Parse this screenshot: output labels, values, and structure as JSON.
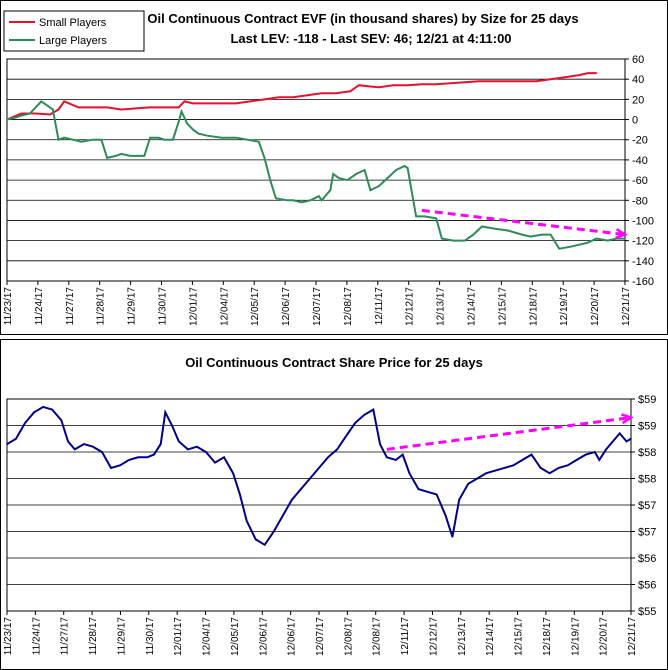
{
  "chart_data": [
    {
      "type": "line",
      "title": "Oil Continuous Contract EVF (in thousand shares) by Size for 25 days",
      "subtitle": "Last LEV: -118 - Last SEV: 46; 12/21 at 4:11:00",
      "legend_position": "top-left",
      "grid": true,
      "y_axis_side": "right",
      "ylim": [
        -160,
        60
      ],
      "y_ticks": [
        60,
        40,
        20,
        0,
        -20,
        -40,
        -60,
        -80,
        -100,
        -120,
        -140,
        -160
      ],
      "categories": [
        "11/23/17",
        "11/24/17",
        "11/27/17",
        "11/28/17",
        "11/29/17",
        "11/30/17",
        "12/01/17",
        "12/04/17",
        "12/05/17",
        "12/06/17",
        "12/07/17",
        "12/08/17",
        "12/11/17",
        "12/12/17",
        "12/13/17",
        "12/14/17",
        "12/15/17",
        "12/18/17",
        "12/19/17",
        "12/20/17",
        "12/21/17"
      ],
      "series": [
        {
          "name": "Small Players",
          "color": "#e8112d",
          "points": [
            [
              0,
              0
            ],
            [
              0.5,
              6
            ],
            [
              1,
              6
            ],
            [
              1.5,
              5
            ],
            [
              1.8,
              10
            ],
            [
              2,
              18
            ],
            [
              2.5,
              12
            ],
            [
              3,
              12
            ],
            [
              3.5,
              12
            ],
            [
              4,
              10
            ],
            [
              4.5,
              11
            ],
            [
              5,
              12
            ],
            [
              5.5,
              12
            ],
            [
              6,
              12
            ],
            [
              6.2,
              18
            ],
            [
              6.5,
              16
            ],
            [
              7,
              16
            ],
            [
              7.5,
              16
            ],
            [
              8,
              16
            ],
            [
              8.5,
              18
            ],
            [
              9,
              20
            ],
            [
              9.5,
              22
            ],
            [
              10,
              22
            ],
            [
              10.5,
              24
            ],
            [
              11,
              26
            ],
            [
              11.5,
              26
            ],
            [
              12,
              28
            ],
            [
              12.3,
              34
            ],
            [
              12.6,
              33
            ],
            [
              13,
              32
            ],
            [
              13.5,
              34
            ],
            [
              14,
              34
            ],
            [
              14.5,
              35
            ],
            [
              15,
              35
            ],
            [
              15.5,
              36
            ],
            [
              16,
              37
            ],
            [
              16.5,
              38
            ],
            [
              17,
              38
            ],
            [
              17.5,
              38
            ],
            [
              18,
              38
            ],
            [
              18.5,
              38
            ],
            [
              19,
              40
            ],
            [
              19.5,
              42
            ],
            [
              20,
              44
            ],
            [
              20.3,
              46
            ],
            [
              20.6,
              46
            ]
          ]
        },
        {
          "name": "Large Players",
          "color": "#2e8b57",
          "points": [
            [
              0,
              0
            ],
            [
              0.3,
              2
            ],
            [
              0.5,
              4
            ],
            [
              0.8,
              6
            ],
            [
              1,
              12
            ],
            [
              1.2,
              18
            ],
            [
              1.4,
              14
            ],
            [
              1.6,
              10
            ],
            [
              1.8,
              -20
            ],
            [
              2,
              -18
            ],
            [
              2.3,
              -20
            ],
            [
              2.6,
              -22
            ],
            [
              3,
              -20
            ],
            [
              3.3,
              -20
            ],
            [
              3.5,
              -38
            ],
            [
              3.8,
              -36
            ],
            [
              4,
              -34
            ],
            [
              4.3,
              -36
            ],
            [
              4.5,
              -36
            ],
            [
              4.8,
              -36
            ],
            [
              5,
              -18
            ],
            [
              5.3,
              -18
            ],
            [
              5.5,
              -20
            ],
            [
              5.8,
              -20
            ],
            [
              6,
              -2
            ],
            [
              6.1,
              8
            ],
            [
              6.3,
              -4
            ],
            [
              6.5,
              -10
            ],
            [
              6.7,
              -14
            ],
            [
              7,
              -16
            ],
            [
              7.5,
              -18
            ],
            [
              8,
              -18
            ],
            [
              8.4,
              -20
            ],
            [
              8.8,
              -22
            ],
            [
              9,
              -38
            ],
            [
              9.2,
              -60
            ],
            [
              9.4,
              -78
            ],
            [
              9.8,
              -80
            ],
            [
              10,
              -80
            ],
            [
              10.3,
              -82
            ],
            [
              10.6,
              -80
            ],
            [
              10.9,
              -76
            ],
            [
              11,
              -80
            ],
            [
              11.3,
              -70
            ],
            [
              11.4,
              -54
            ],
            [
              11.6,
              -58
            ],
            [
              11.9,
              -60
            ],
            [
              12.2,
              -54
            ],
            [
              12.5,
              -50
            ],
            [
              12.7,
              -70
            ],
            [
              13,
              -66
            ],
            [
              13.3,
              -58
            ],
            [
              13.6,
              -50
            ],
            [
              13.9,
              -46
            ],
            [
              14,
              -48
            ],
            [
              14.3,
              -96
            ],
            [
              14.6,
              -96
            ],
            [
              15,
              -98
            ],
            [
              15.2,
              -118
            ],
            [
              15.6,
              -120
            ],
            [
              16,
              -120
            ],
            [
              16.3,
              -114
            ],
            [
              16.6,
              -106
            ],
            [
              17,
              -108
            ],
            [
              17.5,
              -110
            ],
            [
              18,
              -114
            ],
            [
              18.3,
              -116
            ],
            [
              18.7,
              -114
            ],
            [
              19,
              -114
            ],
            [
              19.3,
              -128
            ],
            [
              19.7,
              -126
            ],
            [
              20,
              -124
            ],
            [
              20.3,
              -122
            ],
            [
              20.6,
              -118
            ],
            [
              21,
              -120
            ],
            [
              21.3,
              -118
            ],
            [
              21.6,
              -118
            ]
          ]
        }
      ],
      "trend_line": {
        "color": "#ff00ff",
        "from": [
          14.5,
          -90
        ],
        "to": [
          21.6,
          -114
        ]
      }
    },
    {
      "type": "line",
      "title": "Oil Continuous Contract Share Price for 25 days",
      "grid": true,
      "y_axis_side": "right",
      "ylim": [
        55,
        59
      ],
      "y_ticks": [
        "$59",
        "$59",
        "$58",
        "$58",
        "$57",
        "$57",
        "$56",
        "$56",
        "$55"
      ],
      "categories": [
        "11/23/17",
        "11/24/17",
        "11/27/17",
        "11/28/17",
        "11/29/17",
        "11/30/17",
        "12/01/17",
        "12/04/17",
        "12/05/17",
        "12/06/17",
        "12/06/17",
        "12/07/17",
        "12/08/17",
        "12/08/17",
        "12/11/17",
        "12/12/17",
        "12/13/17",
        "12/14/17",
        "12/15/17",
        "12/18/17",
        "12/19/17",
        "12/20/17",
        "12/21/17"
      ],
      "series": [
        {
          "name": "",
          "color": "#00008b",
          "points": [
            [
              0,
              58.15
            ],
            [
              0.4,
              58.25
            ],
            [
              0.8,
              58.55
            ],
            [
              1.2,
              58.75
            ],
            [
              1.6,
              58.85
            ],
            [
              2,
              58.8
            ],
            [
              2.4,
              58.6
            ],
            [
              2.7,
              58.2
            ],
            [
              3,
              58.05
            ],
            [
              3.4,
              58.15
            ],
            [
              3.8,
              58.1
            ],
            [
              4.2,
              58.0
            ],
            [
              4.6,
              57.7
            ],
            [
              5,
              57.75
            ],
            [
              5.4,
              57.85
            ],
            [
              5.8,
              57.9
            ],
            [
              6.2,
              57.9
            ],
            [
              6.5,
              57.95
            ],
            [
              6.8,
              58.15
            ],
            [
              7,
              58.75
            ],
            [
              7.3,
              58.5
            ],
            [
              7.6,
              58.2
            ],
            [
              8,
              58.05
            ],
            [
              8.4,
              58.1
            ],
            [
              8.8,
              58.0
            ],
            [
              9.2,
              57.8
            ],
            [
              9.6,
              57.9
            ],
            [
              10,
              57.6
            ],
            [
              10.3,
              57.2
            ],
            [
              10.6,
              56.7
            ],
            [
              11,
              56.35
            ],
            [
              11.4,
              56.25
            ],
            [
              11.8,
              56.5
            ],
            [
              12.2,
              56.8
            ],
            [
              12.6,
              57.1
            ],
            [
              13,
              57.3
            ],
            [
              13.4,
              57.5
            ],
            [
              13.8,
              57.7
            ],
            [
              14.2,
              57.9
            ],
            [
              14.6,
              58.05
            ],
            [
              15,
              58.3
            ],
            [
              15.4,
              58.55
            ],
            [
              15.8,
              58.7
            ],
            [
              16.2,
              58.8
            ],
            [
              16.5,
              58.15
            ],
            [
              16.8,
              57.9
            ],
            [
              17.2,
              57.85
            ],
            [
              17.5,
              57.95
            ],
            [
              17.8,
              57.6
            ],
            [
              18.2,
              57.3
            ],
            [
              18.6,
              57.25
            ],
            [
              19,
              57.2
            ],
            [
              19.4,
              56.8
            ],
            [
              19.7,
              56.4
            ],
            [
              20,
              57.1
            ],
            [
              20.4,
              57.4
            ],
            [
              20.8,
              57.5
            ],
            [
              21.2,
              57.6
            ],
            [
              21.6,
              57.65
            ],
            [
              22,
              57.7
            ],
            [
              22.4,
              57.75
            ],
            [
              22.8,
              57.85
            ],
            [
              23.2,
              57.95
            ],
            [
              23.6,
              57.7
            ],
            [
              24,
              57.6
            ],
            [
              24.4,
              57.7
            ],
            [
              24.8,
              57.75
            ],
            [
              25.2,
              57.85
            ],
            [
              25.6,
              57.95
            ],
            [
              26,
              58.0
            ],
            [
              26.2,
              57.85
            ],
            [
              26.5,
              58.05
            ],
            [
              26.8,
              58.2
            ],
            [
              27.1,
              58.35
            ],
            [
              27.4,
              58.2
            ],
            [
              27.6,
              58.25
            ]
          ]
        }
      ],
      "trend_line": {
        "color": "#ff00ff",
        "from": [
          16.8,
          58.05
        ],
        "to": [
          27.6,
          58.65
        ]
      }
    }
  ],
  "legend_labels": [
    "Small Players",
    "Large Players"
  ]
}
